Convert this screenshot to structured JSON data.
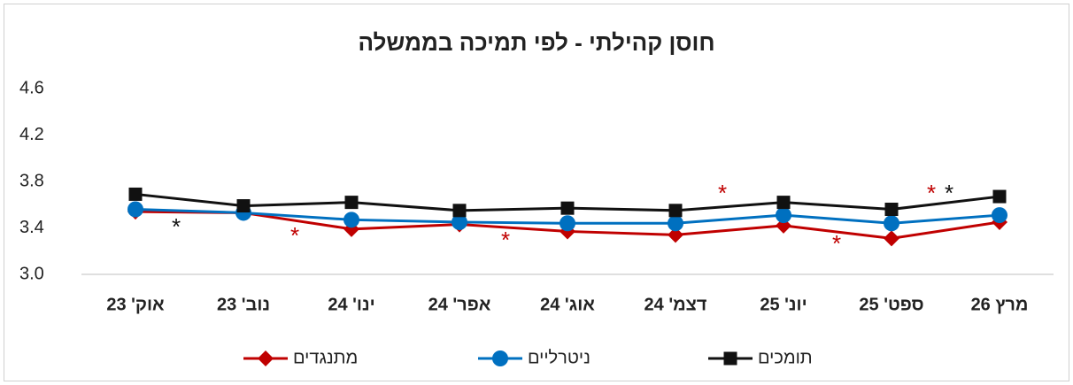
{
  "chart_data": {
    "type": "line",
    "title": "חוסן קהילתי - לפי תמיכה בממשלה",
    "categories": [
      "אוק' 23",
      "נוב' 23",
      "ינו' 24",
      "אפר' 24",
      "אוג' 24",
      "דצמ' 24",
      "יונ' 25",
      "ספט' 25",
      "מרץ 26"
    ],
    "ylim": [
      3,
      4.6
    ],
    "yticks": [
      {
        "value": 3,
        "label": "3.0"
      },
      3.4,
      3.8,
      4.2,
      4.6
    ],
    "grid": false,
    "legend": "bottom",
    "series": [
      {
        "name": "מתנגדים",
        "color": "#c00000",
        "marker": "diamond",
        "values": [
          3.54,
          3.53,
          3.39,
          3.43,
          3.37,
          3.34,
          3.42,
          3.31,
          3.45
        ]
      },
      {
        "name": "ניטרליים",
        "color": "#0070c0",
        "marker": "circle",
        "values": [
          3.56,
          3.53,
          3.47,
          3.45,
          3.44,
          3.44,
          3.51,
          3.44,
          3.51
        ]
      },
      {
        "name": "תומכים",
        "color": "#111111",
        "marker": "square",
        "values": [
          3.69,
          3.59,
          3.62,
          3.55,
          3.57,
          3.55,
          3.62,
          3.56,
          3.67
        ]
      }
    ],
    "annotations": [
      {
        "text": "*",
        "color": "#111111"
      },
      {
        "text": "*",
        "color": "#c00000"
      },
      {
        "text": "*",
        "color": "#c00000"
      },
      {
        "text": "*",
        "color": "#c00000"
      },
      {
        "text": "*",
        "color": "#c00000"
      },
      {
        "text": "*",
        "color": "#c00000"
      },
      {
        "text": "*",
        "color": "#111111"
      }
    ]
  }
}
